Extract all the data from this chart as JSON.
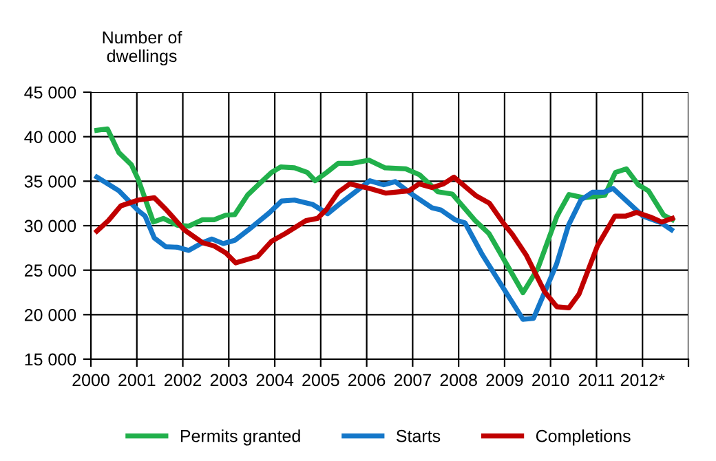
{
  "chart_data": {
    "type": "line",
    "ylabel": "Number of\ndwellings",
    "xlim": [
      2000,
      2013
    ],
    "xticks": [
      2000,
      2001,
      2002,
      2003,
      2004,
      2005,
      2006,
      2007,
      2008,
      2009,
      2010,
      2011,
      {
        "value": 2012,
        "label": "2012*"
      },
      {
        "value": 2013,
        "label": null
      }
    ],
    "ylim": [
      15000,
      45000
    ],
    "yticks": [
      {
        "value": 15000,
        "label": "15 000"
      },
      {
        "value": 20000,
        "label": "20 000"
      },
      {
        "value": 25000,
        "label": "25 000"
      },
      {
        "value": 30000,
        "label": "30 000"
      },
      {
        "value": 35000,
        "label": "35 000"
      },
      {
        "value": 40000,
        "label": "40 000"
      },
      {
        "value": 45000,
        "label": "45 000"
      }
    ],
    "grid": true,
    "legend": "bottom",
    "marker": "none",
    "line_style": "solid",
    "series": [
      {
        "name": "Permits granted",
        "color": "#21b04b",
        "x": [
          2000.13,
          2000.36,
          2000.61,
          2000.88,
          2001.03,
          2001.36,
          2001.58,
          2001.88,
          2002.13,
          2002.43,
          2002.68,
          2002.93,
          2003.13,
          2003.41,
          2003.68,
          2003.93,
          2004.13,
          2004.43,
          2004.71,
          2004.88,
          2005.13,
          2005.38,
          2005.68,
          2006.05,
          2006.4,
          2006.85,
          2007.15,
          2007.55,
          2007.86,
          2008.36,
          2008.66,
          2009.4,
          2009.72,
          2010.14,
          2010.4,
          2010.72,
          2011.18,
          2011.41,
          2011.65,
          2011.91,
          2012.13,
          2012.46,
          2012.65
        ],
        "values": [
          40720,
          40880,
          38200,
          36860,
          35200,
          30410,
          30820,
          30050,
          29950,
          30670,
          30670,
          31180,
          31240,
          33450,
          34790,
          35980,
          36600,
          36500,
          35980,
          35050,
          35980,
          37010,
          37010,
          37370,
          36500,
          36390,
          35720,
          33810,
          33560,
          30570,
          29120,
          22470,
          25150,
          31080,
          33500,
          33140,
          33400,
          35980,
          36390,
          34590,
          33920,
          31180,
          30670
        ]
      },
      {
        "name": "Starts",
        "color": "#1477c9",
        "x": [
          2000.13,
          2000.61,
          2001.03,
          2001.18,
          2001.38,
          2001.63,
          2001.88,
          2002.13,
          2002.43,
          2002.63,
          2002.88,
          2003.13,
          2003.43,
          2003.88,
          2004.15,
          2004.43,
          2004.83,
          2005.15,
          2005.43,
          2006.07,
          2006.37,
          2006.62,
          2007.02,
          2007.42,
          2007.62,
          2007.92,
          2008.14,
          2008.52,
          2009.4,
          2009.63,
          2010.13,
          2010.39,
          2010.66,
          2010.91,
          2011.16,
          2011.36,
          2011.63,
          2012.01,
          2012.41,
          2012.63
        ],
        "values": [
          35460,
          33920,
          31700,
          31080,
          28610,
          27630,
          27580,
          27220,
          28090,
          28510,
          27990,
          28350,
          29540,
          31440,
          32780,
          32880,
          32370,
          31340,
          32520,
          35050,
          34590,
          34950,
          33400,
          32010,
          31750,
          30670,
          30310,
          26700,
          19480,
          19590,
          25670,
          30050,
          32890,
          33760,
          33760,
          34180,
          32890,
          31080,
          30310,
          29540
        ]
      },
      {
        "name": "Completions",
        "color": "#c00000",
        "x": [
          2000.13,
          2000.38,
          2000.65,
          2001.03,
          2001.38,
          2001.63,
          2002.03,
          2002.43,
          2002.68,
          2002.93,
          2003.15,
          2003.63,
          2003.93,
          2004.23,
          2004.68,
          2004.93,
          2005.13,
          2005.38,
          2005.63,
          2006.07,
          2006.42,
          2006.92,
          2007.14,
          2007.42,
          2007.67,
          2007.9,
          2008.37,
          2008.67,
          2008.97,
          2009.17,
          2009.47,
          2009.87,
          2010.14,
          2010.4,
          2010.62,
          2011.02,
          2011.4,
          2011.64,
          2011.87,
          2012.17,
          2012.42,
          2012.65
        ],
        "values": [
          29380,
          30570,
          32220,
          32880,
          33140,
          31850,
          29540,
          28090,
          27730,
          26960,
          25820,
          26550,
          28250,
          29120,
          30570,
          30820,
          31850,
          33760,
          34690,
          34180,
          33660,
          33920,
          34690,
          34280,
          34690,
          35460,
          33400,
          32520,
          30310,
          29020,
          26700,
          22580,
          20880,
          20770,
          22320,
          27730,
          31080,
          31080,
          31490,
          30980,
          30410,
          30820
        ]
      }
    ]
  }
}
